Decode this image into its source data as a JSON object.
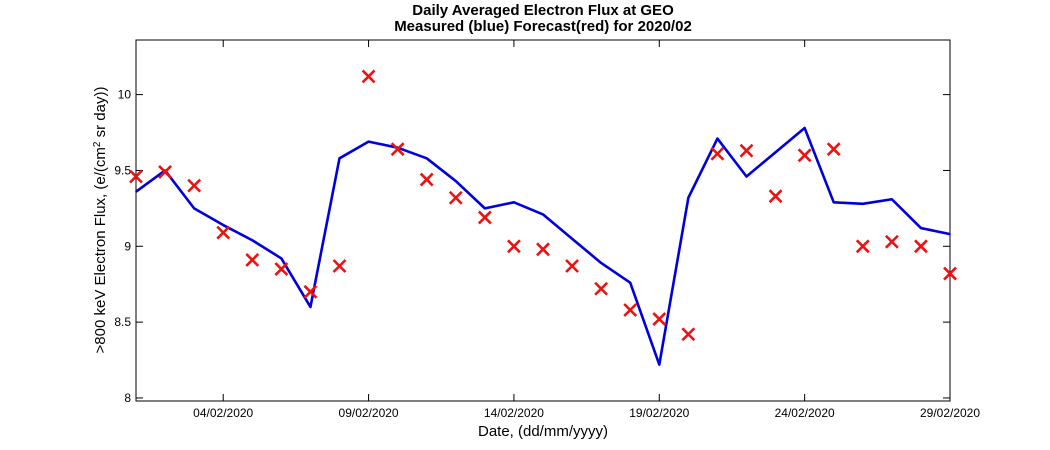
{
  "chart_data": {
    "type": "line",
    "title": [
      "Daily Averaged Electron Flux at GEO",
      "Measured (blue) Forecast(red) for 2020/02"
    ],
    "xlabel": "Date, (dd/mm/yyyy)",
    "ylabel_parts": {
      "main": ">800 keV Electron Flux, (e/(cm",
      "sup": "2",
      "tail": " sr day))"
    },
    "x": [
      "01/02/2020",
      "02/02/2020",
      "03/02/2020",
      "04/02/2020",
      "05/02/2020",
      "06/02/2020",
      "07/02/2020",
      "08/02/2020",
      "09/02/2020",
      "10/02/2020",
      "11/02/2020",
      "12/02/2020",
      "13/02/2020",
      "14/02/2020",
      "15/02/2020",
      "16/02/2020",
      "17/02/2020",
      "18/02/2020",
      "19/02/2020",
      "20/02/2020",
      "21/02/2020",
      "22/02/2020",
      "23/02/2020",
      "24/02/2020",
      "25/02/2020",
      "26/02/2020",
      "27/02/2020",
      "28/02/2020",
      "29/02/2020"
    ],
    "x_ticks": [
      "04/02/2020",
      "09/02/2020",
      "14/02/2020",
      "19/02/2020",
      "24/02/2020",
      "29/02/2020"
    ],
    "y_ticks": [
      8,
      8.5,
      9,
      9.5,
      10
    ],
    "y_tick_labels": [
      "8",
      "8.5",
      "9",
      "9.5",
      "10"
    ],
    "ylim": [
      7.98,
      10.36
    ],
    "series": [
      {
        "name": "Measured",
        "color": "#0000dd",
        "style": "line",
        "values": [
          9.36,
          9.5,
          9.25,
          9.14,
          9.04,
          8.92,
          8.6,
          9.58,
          9.69,
          9.65,
          9.58,
          9.43,
          9.25,
          9.29,
          9.21,
          9.05,
          8.89,
          8.76,
          8.22,
          9.32,
          9.71,
          9.46,
          9.62,
          9.78,
          9.29,
          9.28,
          9.31,
          9.12,
          9.08
        ]
      },
      {
        "name": "Forecast",
        "color": "#ee1111",
        "style": "x-marker",
        "values": [
          9.46,
          9.49,
          9.4,
          9.09,
          8.91,
          8.85,
          8.7,
          8.87,
          10.12,
          9.64,
          9.44,
          9.32,
          9.19,
          9.0,
          8.98,
          8.87,
          8.72,
          8.58,
          8.52,
          8.42,
          9.61,
          9.63,
          9.33,
          9.6,
          9.64,
          9.0,
          9.03,
          9.0,
          8.82
        ]
      }
    ]
  }
}
